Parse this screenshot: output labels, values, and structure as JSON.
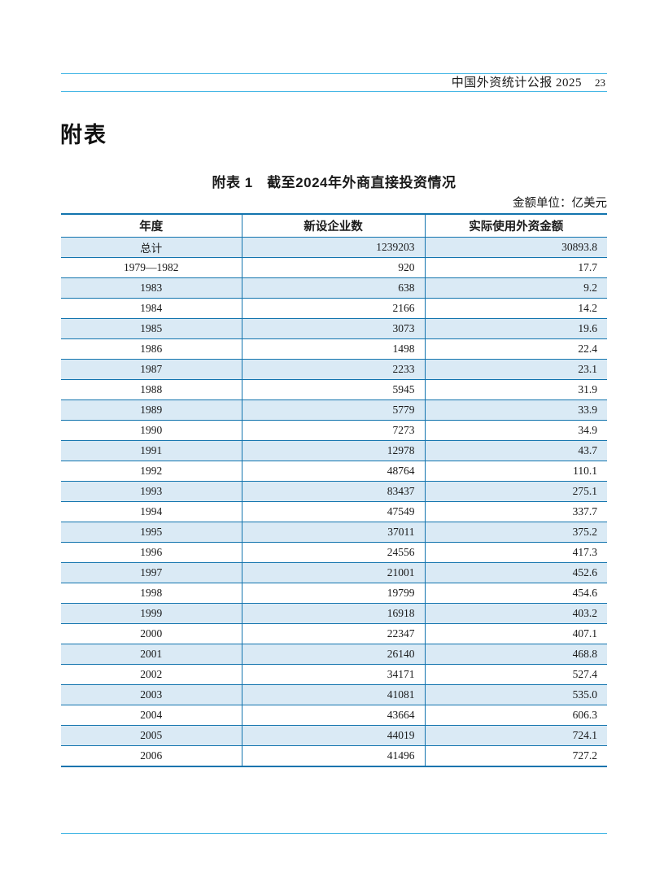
{
  "header": {
    "publication": "中国外资统计公报 2025",
    "page_number": "23"
  },
  "section_title": "附表",
  "table": {
    "caption": "附表 1　截至2024年外商直接投资情况",
    "unit_note": "金额单位：亿美元",
    "columns": [
      "年度",
      "新设企业数",
      "实际使用外资金额"
    ],
    "rows": [
      [
        "总计",
        "1239203",
        "30893.8"
      ],
      [
        "1979—1982",
        "920",
        "17.7"
      ],
      [
        "1983",
        "638",
        "9.2"
      ],
      [
        "1984",
        "2166",
        "14.2"
      ],
      [
        "1985",
        "3073",
        "19.6"
      ],
      [
        "1986",
        "1498",
        "22.4"
      ],
      [
        "1987",
        "2233",
        "23.1"
      ],
      [
        "1988",
        "5945",
        "31.9"
      ],
      [
        "1989",
        "5779",
        "33.9"
      ],
      [
        "1990",
        "7273",
        "34.9"
      ],
      [
        "1991",
        "12978",
        "43.7"
      ],
      [
        "1992",
        "48764",
        "110.1"
      ],
      [
        "1993",
        "83437",
        "275.1"
      ],
      [
        "1994",
        "47549",
        "337.7"
      ],
      [
        "1995",
        "37011",
        "375.2"
      ],
      [
        "1996",
        "24556",
        "417.3"
      ],
      [
        "1997",
        "21001",
        "452.6"
      ],
      [
        "1998",
        "19799",
        "454.6"
      ],
      [
        "1999",
        "16918",
        "403.2"
      ],
      [
        "2000",
        "22347",
        "407.1"
      ],
      [
        "2001",
        "26140",
        "468.8"
      ],
      [
        "2002",
        "34171",
        "527.4"
      ],
      [
        "2003",
        "41081",
        "535.0"
      ],
      [
        "2004",
        "43664",
        "606.3"
      ],
      [
        "2005",
        "44019",
        "724.1"
      ],
      [
        "2006",
        "41496",
        "727.2"
      ]
    ]
  },
  "colors": {
    "rule_cyan": "#45b7e5",
    "table_border": "#1274ae",
    "row_shade": "#daeaf5"
  }
}
